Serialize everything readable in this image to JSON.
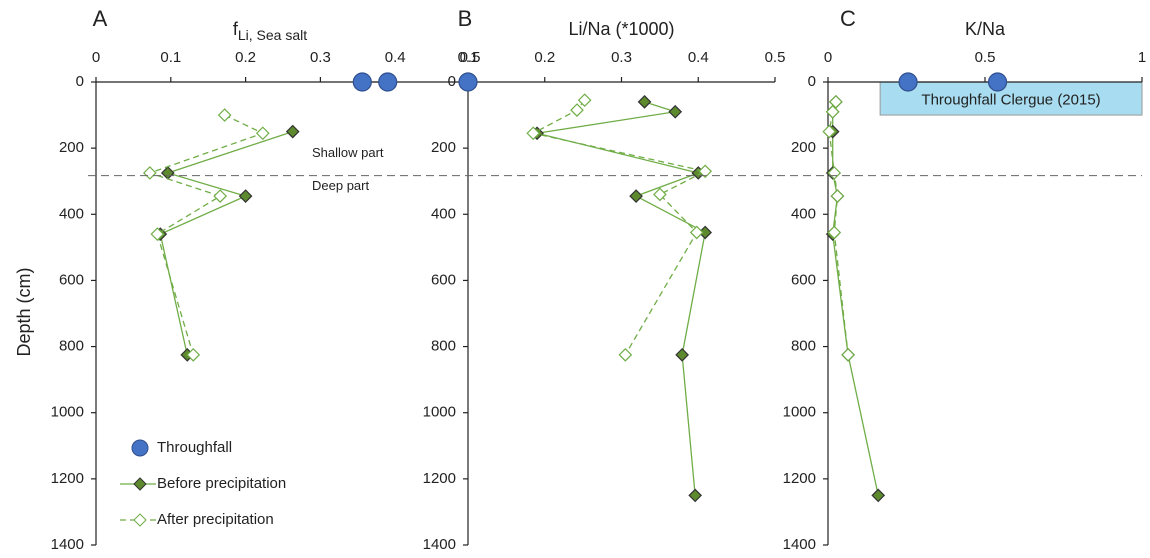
{
  "chart_data": [
    {
      "type": "scatter",
      "letter": "A",
      "xlabel": "f",
      "xlabel_sub": "Li, Sea salt",
      "ylabel": "Depth (cm)",
      "xlim": [
        0,
        0.5
      ],
      "xticks": [
        0,
        0.1,
        0.2,
        0.3,
        0.4,
        0.5
      ],
      "ylim": [
        0,
        1400
      ],
      "yticks": [
        0,
        200,
        400,
        600,
        800,
        1000,
        1200,
        1400
      ],
      "series": [
        {
          "name": "Throughfall",
          "color": "#4472c4",
          "marker": "circle",
          "filled": true,
          "dashed": false,
          "x": [
            0.356,
            0.39
          ],
          "y": [
            0,
            0
          ]
        },
        {
          "name": "Before precipitation",
          "color": "#70ad47",
          "marker": "diamond",
          "filled": true,
          "dashed": false,
          "x": [
            0.263,
            0.096,
            0.2,
            0.086,
            0.122
          ],
          "y": [
            150,
            275,
            345,
            460,
            825
          ]
        },
        {
          "name": "After precipitation",
          "color": "#70ad47",
          "marker": "diamond",
          "filled": false,
          "dashed": true,
          "x": [
            0.172,
            0.223,
            0.072,
            0.166,
            0.082,
            0.13
          ],
          "y": [
            100,
            155,
            275,
            345,
            460,
            825
          ]
        }
      ],
      "hline": 283,
      "hline_labels": [
        "Shallow part",
        "Deep part"
      ]
    },
    {
      "type": "scatter",
      "letter": "B",
      "xlabel": "Li/Na (*1000)",
      "xlim": [
        0.1,
        0.5
      ],
      "xticks": [
        0.1,
        0.2,
        0.3,
        0.4,
        0.5
      ],
      "ylim": [
        0,
        1400
      ],
      "yticks": [
        0,
        200,
        400,
        600,
        800,
        1000,
        1200,
        1400
      ],
      "series": [
        {
          "color": "#4472c4",
          "marker": "circle",
          "filled": true,
          "dashed": false,
          "x": [
            0.1
          ],
          "y": [
            0
          ]
        },
        {
          "color": "#70ad47",
          "marker": "diamond",
          "filled": true,
          "dashed": false,
          "x": [
            0.33,
            0.37,
            0.19,
            0.4,
            0.319,
            0.409,
            0.379,
            0.396
          ],
          "y": [
            60,
            90,
            155,
            275,
            345,
            455,
            825,
            1250
          ]
        },
        {
          "color": "#70ad47",
          "marker": "diamond",
          "filled": false,
          "dashed": true,
          "x": [
            0.252,
            0.242,
            0.185,
            0.409,
            0.35,
            0.398,
            0.305
          ],
          "y": [
            55,
            85,
            155,
            270,
            340,
            455,
            825
          ]
        }
      ]
    },
    {
      "type": "scatter",
      "letter": "C",
      "xlabel": "K/Na",
      "xlim": [
        0,
        1
      ],
      "xticks": [
        0,
        0.5,
        1
      ],
      "ylim": [
        0,
        1400
      ],
      "yticks": [
        0,
        200,
        400,
        600,
        800,
        1000,
        1200,
        1400
      ],
      "series": [
        {
          "color": "#4472c4",
          "marker": "circle",
          "filled": true,
          "dashed": false,
          "x": [
            0.255,
            0.54
          ],
          "y": [
            0,
            0
          ]
        },
        {
          "color": "#70ad47",
          "marker": "diamond",
          "filled": true,
          "dashed": false,
          "x": [
            0.025,
            0.015,
            0.015,
            0.015,
            0.03,
            0.015,
            0.064,
            0.16
          ],
          "y": [
            60,
            90,
            150,
            275,
            345,
            460,
            825,
            1250
          ]
        },
        {
          "color": "#70ad47",
          "marker": "diamond",
          "filled": false,
          "dashed": true,
          "x": [
            0.025,
            0.015,
            0.004,
            0.02,
            0.03,
            0.02,
            0.064
          ],
          "y": [
            60,
            90,
            150,
            275,
            345,
            455,
            825
          ]
        }
      ],
      "span": {
        "label": "Throughfall Clergue (2015)",
        "xlim": [
          0.166,
          1
        ],
        "ylim": [
          0,
          100
        ],
        "color": "#a8dcf0"
      }
    }
  ]
}
